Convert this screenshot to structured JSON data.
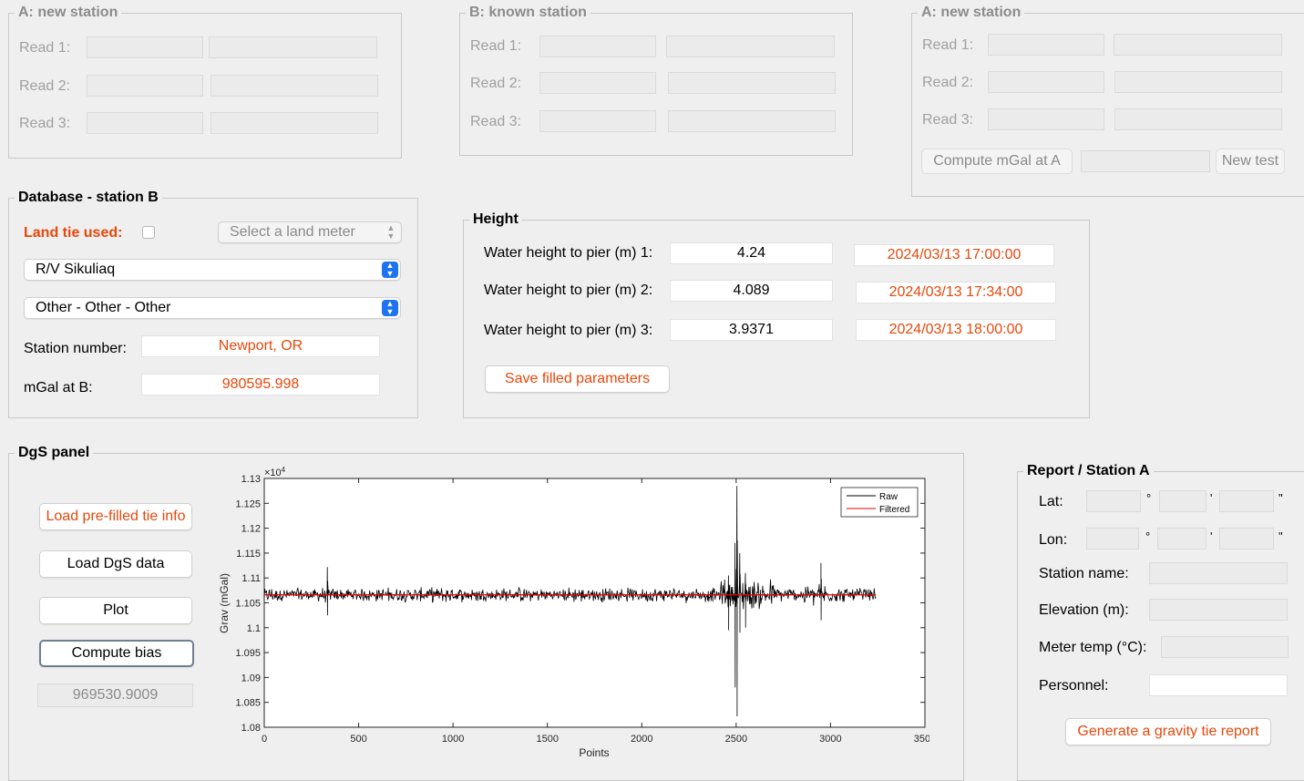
{
  "panel_a1": {
    "title": "A: new station",
    "reads": [
      "Read 1:",
      "Read 2:",
      "Read 3:"
    ]
  },
  "panel_b": {
    "title": "B: known station",
    "reads": [
      "Read 1:",
      "Read 2:",
      "Read 3:"
    ]
  },
  "panel_a2": {
    "title": "A: new station",
    "reads": [
      "Read 1:",
      "Read 2:",
      "Read 3:"
    ],
    "compute_label": "Compute mGal at A",
    "new_test_label": "New test"
  },
  "database": {
    "title": "Database - station B",
    "land_tie_label": "Land tie used:",
    "land_meter_placeholder": "Select a land meter",
    "ship_select": "R/V Sikuliaq",
    "station_select": "Other - Other - Other",
    "station_number_label": "Station number:",
    "station_number_value": "Newport, OR",
    "mgal_label": "mGal at B:",
    "mgal_value": "980595.998"
  },
  "height": {
    "title": "Height",
    "rows": [
      {
        "label": "Water height to pier (m) 1:",
        "value": "4.24",
        "time": "2024/03/13 17:00:00"
      },
      {
        "label": "Water height to pier (m) 2:",
        "value": "4.089",
        "time": "2024/03/13 17:34:00"
      },
      {
        "label": "Water height to pier (m) 3:",
        "value": "3.9371",
        "time": "2024/03/13 18:00:00"
      }
    ],
    "save_label": "Save filled parameters"
  },
  "dgs": {
    "title": "DgS panel",
    "load_prefilled_label": "Load pre-filled tie info",
    "load_dgs_label": "Load DgS data",
    "plot_label": "Plot",
    "compute_bias_label": "Compute bias",
    "bias_value": "969530.9009"
  },
  "chart_data": {
    "type": "line",
    "title": "",
    "xlabel": "Points",
    "ylabel": "Grav (mGal)",
    "exponent_label": "×10",
    "exponent_power": "4",
    "xlim": [
      0,
      3500
    ],
    "ylim": [
      1.08,
      1.13
    ],
    "x_ticks": [
      "0",
      "500",
      "1000",
      "1500",
      "2000",
      "2500",
      "3000",
      "3500"
    ],
    "y_ticks": [
      "1.08",
      "1.085",
      "1.09",
      "1.095",
      "1.1",
      "1.105",
      "1.11",
      "1.115",
      "1.12",
      "1.125",
      "1.13"
    ],
    "legend": [
      "Raw",
      "Filtered"
    ],
    "legend_position": "top-right",
    "grid": false,
    "series": [
      {
        "name": "Raw",
        "color": "#000000",
        "x_range": [
          0,
          3240
        ],
        "baseline": 1.1066,
        "noise": 0.0012,
        "spikes": [
          {
            "x": 335,
            "min": 1.1025,
            "max": 1.1122
          },
          {
            "x": 2460,
            "min": 1.0995,
            "max": 1.1105
          },
          {
            "x": 2495,
            "min": 1.088,
            "max": 1.117
          },
          {
            "x": 2505,
            "min": 1.0822,
            "max": 1.1285
          },
          {
            "x": 2520,
            "min": 1.099,
            "max": 1.115
          },
          {
            "x": 2550,
            "min": 1.1,
            "max": 1.111
          },
          {
            "x": 2950,
            "min": 1.1015,
            "max": 1.113
          }
        ]
      },
      {
        "name": "Filtered",
        "color": "#e00000",
        "x_range": [
          0,
          3240
        ],
        "value": 1.1066
      }
    ]
  },
  "report": {
    "title": "Report /  Station A",
    "lat_label": "Lat:",
    "lon_label": "Lon:",
    "deg_symbol": "°",
    "min_symbol": "'",
    "sec_symbol": "\"",
    "station_name_label": "Station name:",
    "elevation_label": "Elevation (m):",
    "meter_temp_label": "Meter temp (°C):",
    "personnel_label": "Personnel:",
    "generate_label": "Generate a gravity tie report"
  }
}
